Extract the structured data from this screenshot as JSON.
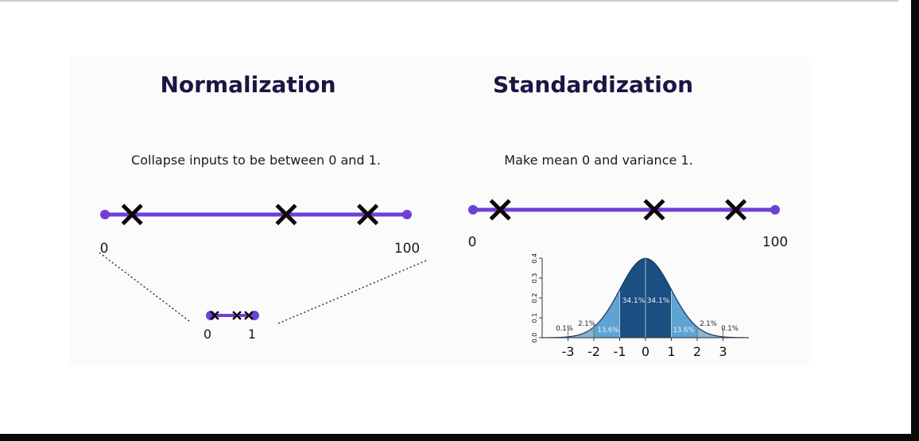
{
  "normalization": {
    "title": "Normalization",
    "subtitle": "Collapse inputs to be between 0 and 1.",
    "line": {
      "min_label": "0",
      "max_label": "100",
      "x_values": [
        9,
        60,
        87
      ]
    },
    "zoom": {
      "min_label": "0",
      "max_label": "1",
      "x_values": [
        0.09,
        0.6,
        0.87
      ]
    }
  },
  "standardization": {
    "title": "Standardization",
    "subtitle": "Make mean 0 and variance 1.",
    "line": {
      "min_label": "0",
      "max_label": "100",
      "x_values": [
        9,
        60,
        87
      ]
    }
  },
  "colors": {
    "line": "#6f3fd6",
    "title": "#1a1642",
    "curve_dark": "#1b4f82",
    "curve_mid": "#2a77b3",
    "curve_light": "#5ea3d3",
    "curve_tail": "#8fb3cc"
  },
  "chart_data": {
    "type": "area",
    "x_ticks": [
      "-3",
      "-2",
      "-1",
      "0",
      "1",
      "2",
      "3"
    ],
    "y_ticks": [
      "0.0",
      "0.1",
      "0.2",
      "0.3",
      "0.4"
    ],
    "xlim": [
      -4,
      4
    ],
    "ylim": [
      0,
      0.4
    ],
    "regions": [
      {
        "from": -4,
        "to": -3,
        "label": "0.1%"
      },
      {
        "from": -3,
        "to": -2,
        "label": "2.1%"
      },
      {
        "from": -2,
        "to": -1,
        "label": "13.6%"
      },
      {
        "from": -1,
        "to": 0,
        "label": "34.1%"
      },
      {
        "from": 0,
        "to": 1,
        "label": "34.1%"
      },
      {
        "from": 1,
        "to": 2,
        "label": "13.6%"
      },
      {
        "from": 2,
        "to": 3,
        "label": "2.1%"
      },
      {
        "from": 3,
        "to": 4,
        "label": "0.1%"
      }
    ]
  }
}
